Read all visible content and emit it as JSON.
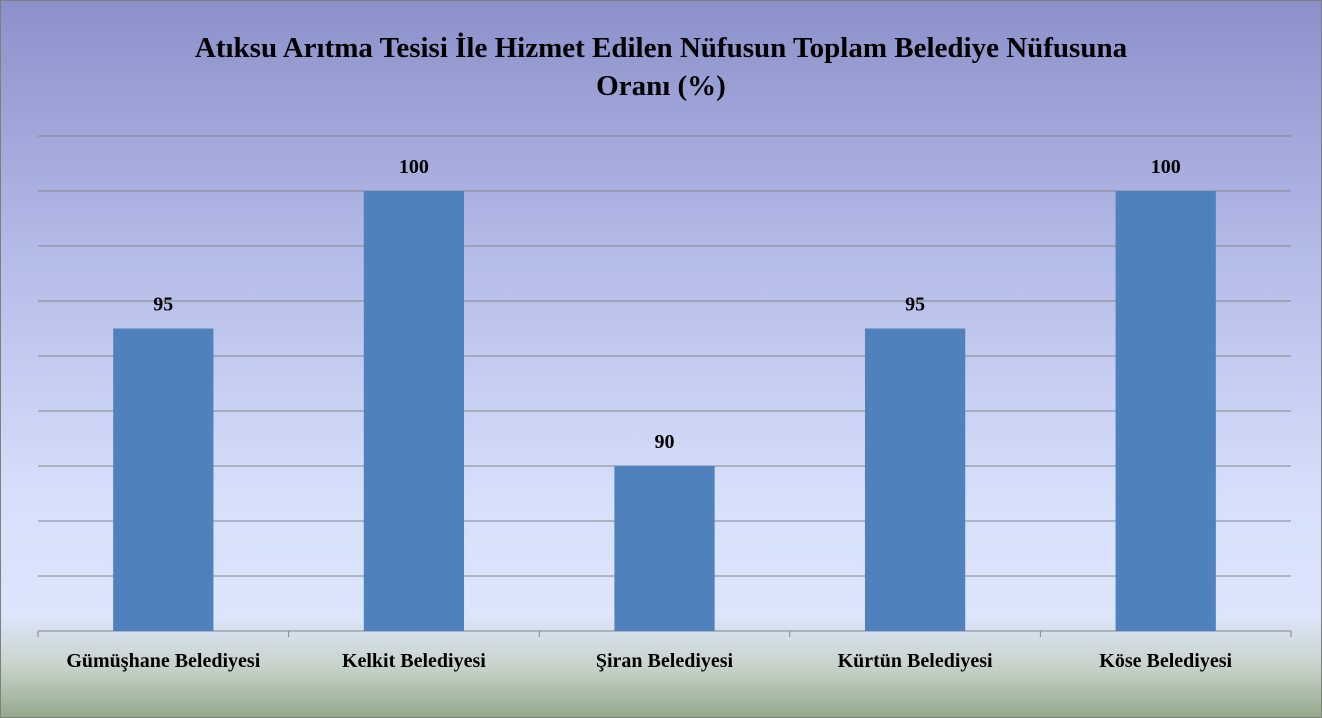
{
  "chart_data": {
    "type": "bar",
    "title": "Atıksu Arıtma Tesisi İle Hizmet Edilen Nüfusun Toplam Belediye Nüfusuna Oranı (%)",
    "categories": [
      "Gümüşhane Belediyesi",
      "Kelkit Belediyesi",
      "Şiran Belediyesi",
      "Kürtün Belediyesi",
      "Köse Belediyesi"
    ],
    "values": [
      95,
      100,
      90,
      95,
      100
    ],
    "color": "#4f81bd",
    "ylim": [
      84,
      102
    ],
    "yticks": [
      84,
      86,
      88,
      90,
      92,
      94,
      96,
      98,
      100,
      102
    ],
    "grid": true
  }
}
